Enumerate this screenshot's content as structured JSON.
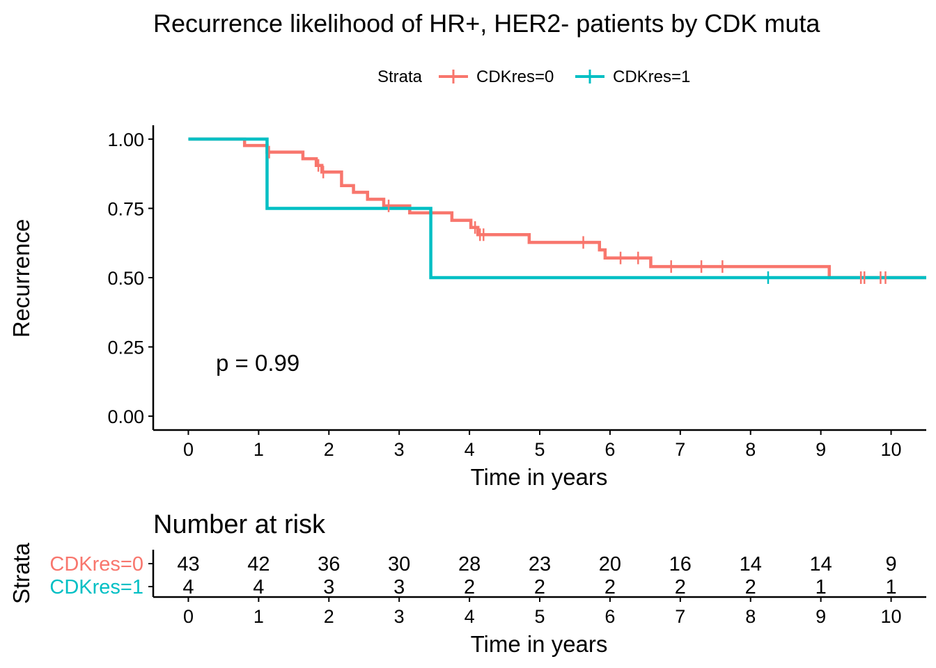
{
  "colors": {
    "stratum0": "#F8766D",
    "stratum1": "#00BFC4",
    "axis": "#000000",
    "background": "#FFFFFF"
  },
  "chart_data": [
    {
      "type": "line",
      "subtype": "kaplan-meier step",
      "title": "Recurrence likelihood of HR+, HER2- patients by CDK muta",
      "xlabel": "Time in years",
      "ylabel": "Recurrence",
      "xlim": [
        -0.5,
        10.5
      ],
      "ylim": [
        -0.05,
        1.05
      ],
      "x_ticks": [
        0,
        1,
        2,
        3,
        4,
        5,
        6,
        7,
        8,
        9,
        10
      ],
      "y_ticks": [
        0.0,
        0.25,
        0.5,
        0.75,
        1.0
      ],
      "y_tick_labels": [
        "0.00",
        "0.25",
        "0.50",
        "0.75",
        "1.00"
      ],
      "grid": false,
      "legend": {
        "title": "Strata",
        "position": "top",
        "entries": [
          "CDKres=0",
          "CDKres=1"
        ]
      },
      "annotation": "p = 0.99",
      "series": [
        {
          "name": "CDKres=0",
          "color": "#F8766D",
          "steps": [
            [
              0,
              1.0
            ],
            [
              0.8,
              0.977
            ],
            [
              1.12,
              0.953
            ],
            [
              1.63,
              0.929
            ],
            [
              1.82,
              0.905
            ],
            [
              1.9,
              0.881
            ],
            [
              2.18,
              0.832
            ],
            [
              2.35,
              0.808
            ],
            [
              2.55,
              0.783
            ],
            [
              2.78,
              0.759
            ],
            [
              3.15,
              0.734
            ],
            [
              3.75,
              0.707
            ],
            [
              4.02,
              0.681
            ],
            [
              4.12,
              0.655
            ],
            [
              4.85,
              0.627
            ],
            [
              5.85,
              0.6
            ],
            [
              5.93,
              0.571
            ],
            [
              6.58,
              0.54
            ],
            [
              9.12,
              0.5
            ],
            [
              10.5,
              0.5
            ]
          ],
          "censor_times": [
            1.15,
            1.85,
            1.92,
            2.85,
            4.08,
            4.15,
            4.2,
            5.62,
            6.15,
            6.4,
            6.87,
            7.3,
            7.6,
            9.57,
            9.62,
            9.85,
            9.92
          ]
        },
        {
          "name": "CDKres=1",
          "color": "#00BFC4",
          "steps": [
            [
              0,
              1.0
            ],
            [
              1.12,
              0.75
            ],
            [
              3.45,
              0.5
            ],
            [
              10.5,
              0.5
            ]
          ],
          "censor_times": [
            8.25
          ]
        }
      ]
    },
    {
      "type": "table",
      "title": "Number at risk",
      "xlabel": "Time in years",
      "ylabel": "Strata",
      "x": [
        0,
        1,
        2,
        3,
        4,
        5,
        6,
        7,
        8,
        9,
        10
      ],
      "rows": [
        {
          "name": "CDKres=0",
          "color": "#F8766D",
          "values": [
            43,
            42,
            36,
            30,
            28,
            23,
            20,
            16,
            14,
            14,
            9
          ]
        },
        {
          "name": "CDKres=1",
          "color": "#00BFC4",
          "values": [
            4,
            4,
            3,
            3,
            2,
            2,
            2,
            2,
            2,
            1,
            1
          ]
        }
      ]
    }
  ]
}
